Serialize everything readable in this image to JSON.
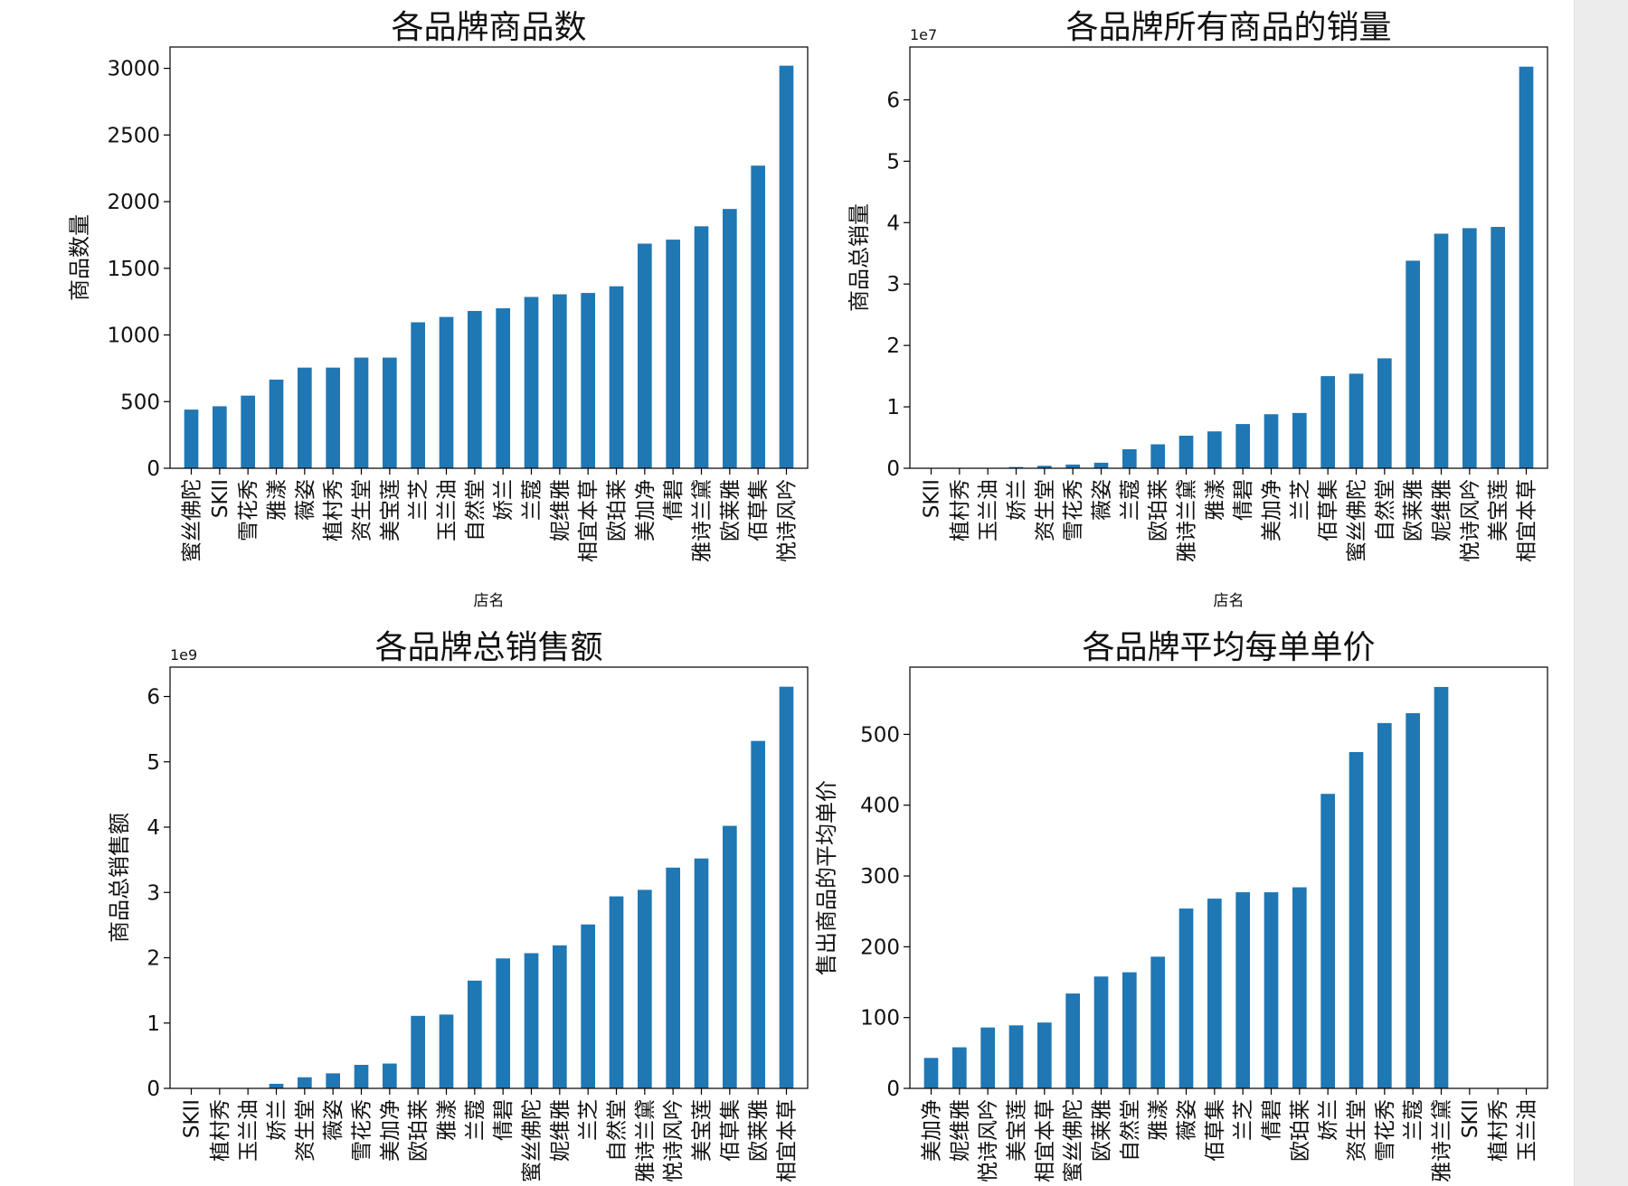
{
  "scrollbar": {
    "visible": true
  },
  "chart_data": [
    {
      "type": "bar",
      "title": "各品牌商品数",
      "xlabel": "店名",
      "ylabel": "商品数量",
      "offset": "",
      "categories": [
        "蜜丝佛陀",
        "SKII",
        "雪花秀",
        "雅漾",
        "薇姿",
        "植村秀",
        "资生堂",
        "美宝莲",
        "兰芝",
        "玉兰油",
        "自然堂",
        "娇兰",
        "兰蔻",
        "妮维雅",
        "相宜本草",
        "欧珀莱",
        "美加净",
        "倩碧",
        "雅诗兰黛",
        "欧莱雅",
        "佰草集",
        "悦诗风吟"
      ],
      "values": [
        440,
        465,
        545,
        665,
        755,
        755,
        830,
        830,
        1095,
        1135,
        1180,
        1200,
        1285,
        1305,
        1315,
        1365,
        1685,
        1715,
        1815,
        1945,
        2270,
        3020
      ],
      "ylim": [
        0,
        3160
      ],
      "yticks": [
        0,
        500,
        1000,
        1500,
        2000,
        2500,
        3000
      ],
      "ytick_labels": [
        "0",
        "500",
        "1000",
        "1500",
        "2000",
        "2500",
        "3000"
      ],
      "color": "#1f77b4",
      "grid": false
    },
    {
      "type": "bar",
      "title": "各品牌所有商品的销量",
      "xlabel": "店名",
      "ylabel": "商品总销量",
      "offset": "1e7",
      "categories": [
        "SKII",
        "植村秀",
        "玉兰油",
        "娇兰",
        "资生堂",
        "雪花秀",
        "薇姿",
        "兰蔻",
        "欧珀莱",
        "雅诗兰黛",
        "雅漾",
        "倩碧",
        "美加净",
        "兰芝",
        "佰草集",
        "蜜丝佛陀",
        "自然堂",
        "欧莱雅",
        "妮维雅",
        "悦诗风吟",
        "美宝莲",
        "相宜本草"
      ],
      "values": [
        0,
        0,
        0,
        0.02,
        0.04,
        0.06,
        0.09,
        0.31,
        0.39,
        0.53,
        0.6,
        0.72,
        0.88,
        0.9,
        1.5,
        1.54,
        1.79,
        3.38,
        3.82,
        3.91,
        3.93,
        6.54
      ],
      "ylim": [
        0,
        6.86
      ],
      "yticks": [
        0,
        1,
        2,
        3,
        4,
        5,
        6
      ],
      "ytick_labels": [
        "0",
        "1",
        "2",
        "3",
        "4",
        "5",
        "6"
      ],
      "color": "#1f77b4",
      "grid": false
    },
    {
      "type": "bar",
      "title": "各品牌总销售额",
      "xlabel": "",
      "ylabel": "商品总销售额",
      "offset": "1e9",
      "categories": [
        "SKII",
        "植村秀",
        "玉兰油",
        "娇兰",
        "资生堂",
        "薇姿",
        "雪花秀",
        "美加净",
        "欧珀莱",
        "雅漾",
        "兰蔻",
        "倩碧",
        "蜜丝佛陀",
        "妮维雅",
        "兰芝",
        "自然堂",
        "雅诗兰黛",
        "悦诗风吟",
        "美宝莲",
        "佰草集",
        "欧莱雅",
        "相宜本草"
      ],
      "values": [
        0,
        0,
        0,
        0.07,
        0.17,
        0.23,
        0.36,
        0.38,
        1.11,
        1.13,
        1.65,
        1.99,
        2.07,
        2.19,
        2.51,
        2.94,
        3.04,
        3.38,
        3.52,
        4.02,
        5.32,
        6.15
      ],
      "ylim": [
        0,
        6.45
      ],
      "yticks": [
        0,
        1,
        2,
        3,
        4,
        5,
        6
      ],
      "ytick_labels": [
        "0",
        "1",
        "2",
        "3",
        "4",
        "5",
        "6"
      ],
      "color": "#1f77b4",
      "grid": false
    },
    {
      "type": "bar",
      "title": "各品牌平均每单单价",
      "xlabel": "",
      "ylabel": "售出商品的平均单价",
      "offset": "",
      "categories": [
        "美加净",
        "妮维雅",
        "悦诗风吟",
        "美宝莲",
        "相宜本草",
        "蜜丝佛陀",
        "欧莱雅",
        "自然堂",
        "雅漾",
        "薇姿",
        "佰草集",
        "兰芝",
        "倩碧",
        "欧珀莱",
        "娇兰",
        "资生堂",
        "雪花秀",
        "兰蔻",
        "雅诗兰黛",
        "SKII",
        "植村秀",
        "玉兰油"
      ],
      "values": [
        43,
        58,
        86,
        89,
        93,
        134,
        158,
        164,
        186,
        254,
        268,
        277,
        277,
        284,
        416,
        475,
        516,
        530,
        567,
        0,
        0,
        0
      ],
      "ylim": [
        0,
        595
      ],
      "yticks": [
        0,
        100,
        200,
        300,
        400,
        500
      ],
      "ytick_labels": [
        "0",
        "100",
        "200",
        "300",
        "400",
        "500"
      ],
      "color": "#1f77b4",
      "grid": false
    }
  ]
}
